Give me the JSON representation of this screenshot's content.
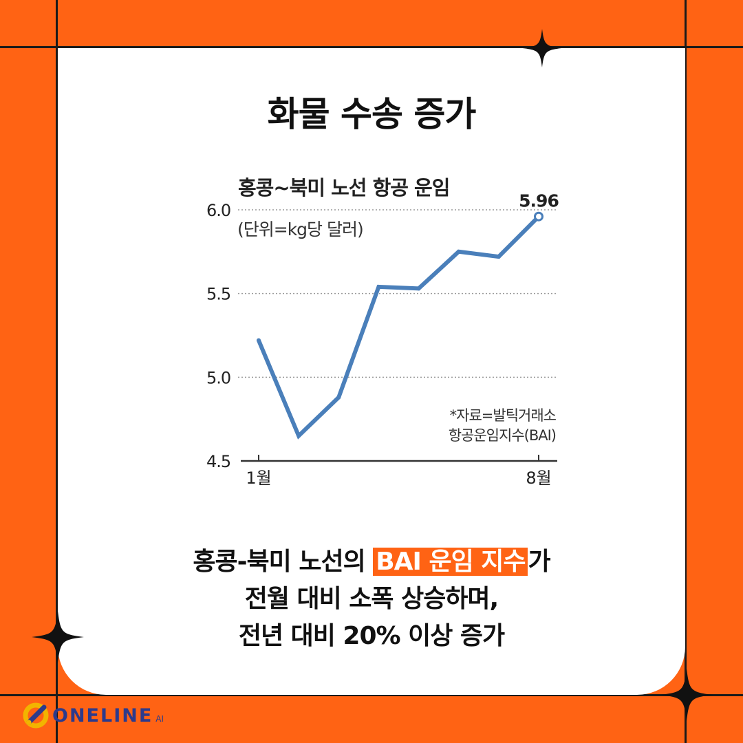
{
  "title": "화물 수송 증가",
  "caption": {
    "line1_before": "홍콩-북미 노선의 ",
    "line1_highlight": "BAI 운임 지수",
    "line1_after": "가",
    "line2": "전월 대비 소폭 상승하며,",
    "line3": "전년 대비 20% 이상 증가"
  },
  "brand": {
    "name": "ONELINE",
    "suffix": "AI"
  },
  "colors": {
    "accent": "#ff6314",
    "line": "#4a7fba",
    "dark": "#1a1a1a",
    "brand": "#2c3a8c"
  },
  "icons": [
    "sparkle-icon",
    "oneline-logo-icon"
  ],
  "chart_data": {
    "type": "line",
    "title": "홍콩~북미 노선 항공 운임",
    "subtitle": "(단위=kg당 달러)",
    "source_lines": [
      "*자료=발틱거래소",
      "항공운임지수(BAI)"
    ],
    "x": [
      1,
      2,
      3,
      4,
      5,
      6,
      7,
      8
    ],
    "x_tick_labels": [
      {
        "x": 1,
        "label": "1월"
      },
      {
        "x": 8,
        "label": "8월"
      }
    ],
    "series": [
      {
        "values": [
          5.22,
          4.65,
          4.88,
          5.54,
          5.53,
          5.75,
          5.72,
          5.96
        ]
      }
    ],
    "ylim": [
      4.5,
      6.0
    ],
    "y_ticks": [
      4.5,
      5.0,
      5.5,
      6.0
    ],
    "y_tick_labels": [
      "4.5",
      "5.0",
      "5.5",
      "6.0"
    ],
    "end_label": "5.96",
    "grid": "dotted-horizontal"
  }
}
